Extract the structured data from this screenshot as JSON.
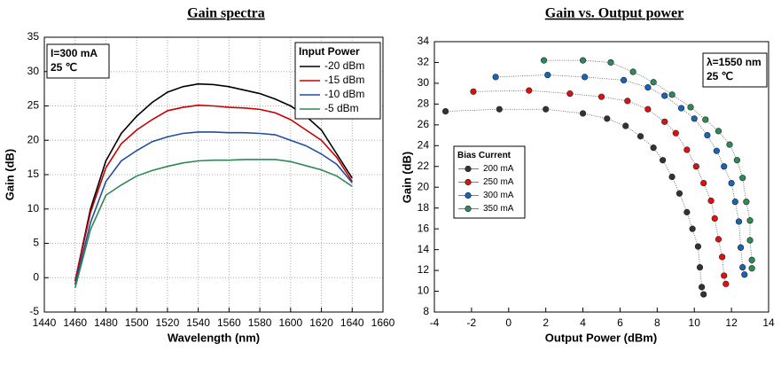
{
  "chart_data": [
    {
      "type": "line",
      "title": "Gain spectra",
      "xlabel": "Wavelength (nm)",
      "ylabel": "Gain (dB)",
      "annotations": [
        "I=300 mA",
        "25 ℃"
      ],
      "legend_title": "Input Power",
      "legend": "upper right",
      "grid": true,
      "xlim": [
        1440,
        1660
      ],
      "xticks": [
        1440,
        1460,
        1480,
        1500,
        1520,
        1540,
        1560,
        1580,
        1600,
        1620,
        1640,
        1660
      ],
      "ylim": [
        -5,
        35
      ],
      "yticks": [
        -5,
        0,
        5,
        10,
        15,
        20,
        25,
        30,
        35
      ],
      "x": [
        1460,
        1470,
        1480,
        1490,
        1500,
        1510,
        1520,
        1530,
        1540,
        1550,
        1560,
        1570,
        1580,
        1590,
        1600,
        1610,
        1620,
        1630,
        1640
      ],
      "series": [
        {
          "name": "-20 dBm",
          "color": "#000000",
          "values": [
            -0.5,
            10,
            17,
            21,
            23.5,
            25.5,
            27,
            27.8,
            28.2,
            28.1,
            27.8,
            27.3,
            26.8,
            26,
            25,
            23.5,
            21.5,
            18,
            14.5
          ]
        },
        {
          "name": "-15 dBm",
          "color": "#c80000",
          "values": [
            -0.5,
            9.5,
            16,
            19.5,
            21.5,
            23,
            24.3,
            24.8,
            25.1,
            25,
            24.8,
            24.7,
            24.5,
            24,
            23,
            21.5,
            20,
            17.5,
            14
          ]
        },
        {
          "name": "-10 dBm",
          "color": "#1f4e9f",
          "values": [
            -1,
            8,
            14,
            17,
            18.5,
            19.8,
            20.5,
            21,
            21.2,
            21.2,
            21.1,
            21.1,
            21,
            20.8,
            20,
            19.2,
            18,
            16.5,
            13.8
          ]
        },
        {
          "name": "-5 dBm",
          "color": "#2b8a53",
          "values": [
            -1.5,
            7,
            12,
            13.5,
            14.8,
            15.6,
            16.2,
            16.7,
            17,
            17.1,
            17.1,
            17.2,
            17.2,
            17.2,
            16.9,
            16.3,
            15.7,
            14.8,
            13.3
          ]
        }
      ]
    },
    {
      "type": "scatter",
      "title": "Gain vs. Output power",
      "xlabel": "Output Power (dBm)",
      "ylabel": "Gain (dB)",
      "annotations": [
        "λ=1550 nm",
        "25 ℃"
      ],
      "legend_title": "Bias Current",
      "legend": "lower left",
      "grid": false,
      "xlim": [
        -4,
        14
      ],
      "xticks": [
        -4,
        -2,
        0,
        2,
        4,
        6,
        8,
        10,
        12,
        14
      ],
      "ylim": [
        8,
        34
      ],
      "yticks": [
        8,
        10,
        12,
        14,
        16,
        18,
        20,
        22,
        24,
        26,
        28,
        30,
        32,
        34
      ],
      "series": [
        {
          "name": "200 mA",
          "color": "#333333",
          "x": [
            -3.4,
            -0.5,
            2.0,
            4.0,
            5.3,
            6.3,
            7.1,
            7.8,
            8.3,
            8.8,
            9.2,
            9.6,
            9.9,
            10.2,
            10.3,
            10.4,
            10.5
          ],
          "values": [
            27.3,
            27.5,
            27.5,
            27.1,
            26.6,
            25.9,
            24.9,
            23.8,
            22.6,
            21.0,
            19.4,
            17.6,
            16.0,
            14.3,
            12.3,
            10.4,
            9.7
          ]
        },
        {
          "name": "250 mA",
          "color": "#e01010",
          "x": [
            -1.9,
            1.1,
            3.3,
            5.0,
            6.4,
            7.5,
            8.4,
            9.0,
            9.6,
            10.1,
            10.5,
            10.9,
            11.1,
            11.3,
            11.5,
            11.6,
            11.7
          ],
          "values": [
            29.2,
            29.3,
            29.0,
            28.7,
            28.3,
            27.5,
            26.3,
            25.2,
            23.6,
            22.0,
            20.4,
            18.7,
            17.0,
            15.0,
            13.3,
            11.5,
            10.7
          ]
        },
        {
          "name": "300 mA",
          "color": "#1565b8",
          "x": [
            -0.7,
            2.1,
            4.1,
            6.2,
            7.5,
            8.4,
            9.3,
            10.0,
            10.7,
            11.2,
            11.6,
            12.0,
            12.2,
            12.4,
            12.5,
            12.6,
            12.7
          ],
          "values": [
            30.6,
            30.8,
            30.6,
            30.3,
            29.6,
            28.8,
            27.6,
            26.6,
            25.0,
            23.5,
            22.0,
            20.4,
            18.6,
            16.7,
            14.2,
            12.3,
            11.6
          ]
        },
        {
          "name": "350 mA",
          "color": "#2e8b57",
          "x": [
            1.9,
            4.0,
            5.5,
            6.7,
            7.8,
            8.8,
            9.8,
            10.6,
            11.3,
            11.9,
            12.3,
            12.6,
            12.8,
            13.0,
            13.0,
            13.1,
            13.1
          ],
          "values": [
            32.2,
            32.2,
            32.0,
            31.1,
            30.1,
            28.9,
            27.7,
            26.5,
            25.4,
            24.1,
            22.6,
            20.9,
            18.6,
            16.8,
            14.9,
            13.0,
            12.2
          ]
        }
      ]
    }
  ]
}
